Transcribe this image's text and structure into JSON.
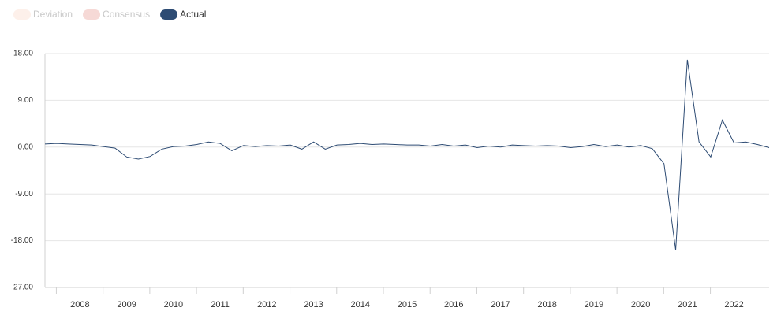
{
  "chart_data": {
    "type": "line",
    "x": [
      2007.25,
      2007.5,
      2007.75,
      2008,
      2008.25,
      2008.5,
      2008.75,
      2009,
      2009.25,
      2009.5,
      2009.75,
      2010,
      2010.25,
      2010.5,
      2010.75,
      2011,
      2011.25,
      2011.5,
      2011.75,
      2012,
      2012.25,
      2012.5,
      2012.75,
      2013,
      2013.25,
      2013.5,
      2013.75,
      2014,
      2014.25,
      2014.5,
      2014.75,
      2015,
      2015.25,
      2015.5,
      2015.75,
      2016,
      2016.25,
      2016.5,
      2016.75,
      2017,
      2017.25,
      2017.5,
      2017.75,
      2018,
      2018.25,
      2018.5,
      2018.75,
      2019,
      2019.25,
      2019.5,
      2019.75,
      2020,
      2020.25,
      2020.5,
      2020.75,
      2021,
      2021.25,
      2021.5,
      2021.75,
      2022,
      2022.25,
      2022.5,
      2022.75
    ],
    "series": [
      {
        "name": "Actual",
        "color": "#2d4b73",
        "values": [
          0.6,
          0.7,
          0.6,
          0.5,
          0.4,
          0.1,
          -0.2,
          -1.9,
          -2.3,
          -1.8,
          -0.4,
          0.1,
          0.2,
          0.5,
          1.0,
          0.7,
          -0.7,
          0.3,
          0.1,
          0.3,
          0.2,
          0.4,
          -0.4,
          1.0,
          -0.4,
          0.4,
          0.5,
          0.7,
          0.5,
          0.6,
          0.5,
          0.4,
          0.4,
          0.2,
          0.5,
          0.2,
          0.4,
          -0.1,
          0.2,
          0.0,
          0.4,
          0.3,
          0.2,
          0.3,
          0.2,
          -0.1,
          0.1,
          0.5,
          0.1,
          0.4,
          0.0,
          0.3,
          -0.3,
          -3.2,
          -19.8,
          16.8,
          1.0,
          -1.9,
          5.2,
          0.8,
          1.0,
          0.5,
          -0.1
        ]
      }
    ],
    "inactive_series": [
      {
        "name": "Deviation",
        "color": "#fdf0ea"
      },
      {
        "name": "Consensus",
        "color": "#f6d9d6"
      }
    ],
    "xlim": [
      2007.25,
      2022.75
    ],
    "xticks": [
      2008,
      2009,
      2010,
      2011,
      2012,
      2013,
      2014,
      2015,
      2016,
      2017,
      2018,
      2019,
      2020,
      2021,
      2022
    ],
    "ylim": [
      -27,
      18
    ],
    "yticks": [
      {
        "value": -27,
        "label": "-27.00"
      },
      {
        "value": -18,
        "label": "-18.00"
      },
      {
        "value": -9,
        "label": "-9.00"
      },
      {
        "value": 0,
        "label": "0.00"
      },
      {
        "value": 9,
        "label": "9.00"
      },
      {
        "value": 18,
        "label": "18.00"
      }
    ],
    "grid": true
  }
}
